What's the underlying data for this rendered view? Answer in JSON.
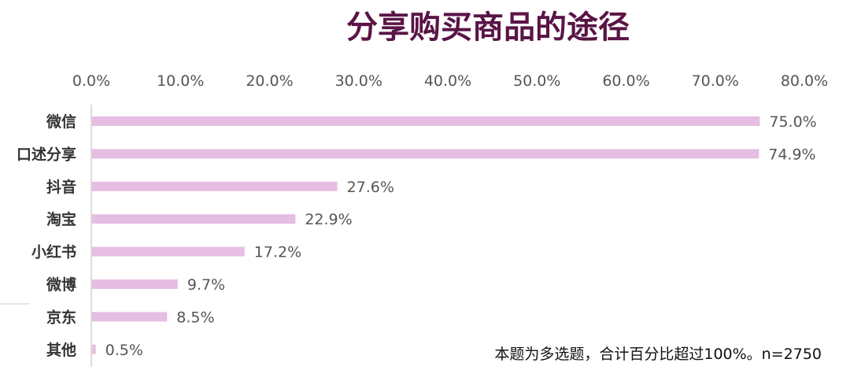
{
  "chart_data": {
    "type": "bar",
    "orientation": "horizontal",
    "title": "分享购买商品的途径",
    "categories": [
      "微信",
      "口述分享",
      "抖音",
      "淘宝",
      "小红书",
      "微博",
      "京东",
      "其他"
    ],
    "values": [
      75.0,
      74.9,
      27.6,
      22.9,
      17.2,
      9.7,
      8.5,
      0.5
    ],
    "value_labels": [
      "75.0%",
      "74.9%",
      "27.6%",
      "22.9%",
      "17.2%",
      "9.7%",
      "8.5%",
      "0.5%"
    ],
    "x_ticks": [
      "0.0%",
      "10.0%",
      "20.0%",
      "30.0%",
      "40.0%",
      "50.0%",
      "60.0%",
      "70.0%",
      "80.0%"
    ],
    "xlim": [
      0,
      80
    ],
    "x_axis_position": "top",
    "grid": false,
    "legend": "none",
    "note": "本题为多选题，合计百分比超过100%。n=2750",
    "colors": {
      "bar": "#e6bde3",
      "title": "#5a1446"
    }
  }
}
